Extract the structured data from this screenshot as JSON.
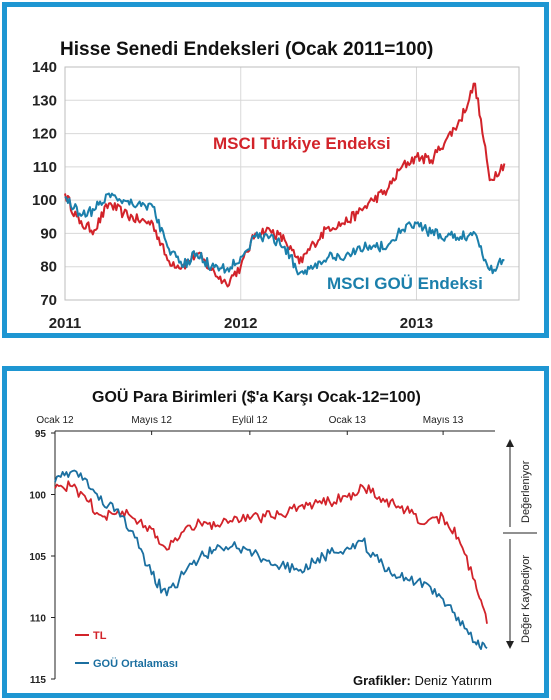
{
  "chart_data": [
    {
      "type": "line",
      "title": "Hisse Senedi Endeksleri (Ocak 2011=100)",
      "xlabel": "",
      "ylabel": "",
      "x_tick_labels": [
        "2011",
        "2012",
        "2013"
      ],
      "y_ticks": [
        70,
        80,
        90,
        100,
        110,
        120,
        130,
        140
      ],
      "ylim": [
        70,
        140
      ],
      "grid": true,
      "series": [
        {
          "name": "MSCI Türkiye Endeksi",
          "color": "#d2232a",
          "x": [
            "2011-01",
            "2011-02",
            "2011-03",
            "2011-04",
            "2011-05",
            "2011-06",
            "2011-07",
            "2011-08",
            "2011-09",
            "2011-10",
            "2011-11",
            "2011-12",
            "2012-01",
            "2012-02",
            "2012-03",
            "2012-04",
            "2012-05",
            "2012-06",
            "2012-07",
            "2012-08",
            "2012-09",
            "2012-10",
            "2012-11",
            "2012-12",
            "2013-01",
            "2013-02",
            "2013-03",
            "2013-04",
            "2013-05",
            "2013-06",
            "2013-07"
          ],
          "values": [
            102,
            93,
            91,
            99,
            96,
            94,
            93,
            82,
            80,
            84,
            79,
            75,
            80,
            90,
            91,
            88,
            81,
            87,
            92,
            93,
            96,
            100,
            103,
            110,
            113,
            112,
            118,
            124,
            135,
            106,
            111
          ]
        },
        {
          "name": "MSCI GOÜ Endeksi",
          "color": "#1b7fab",
          "x": [
            "2011-01",
            "2011-02",
            "2011-03",
            "2011-04",
            "2011-05",
            "2011-06",
            "2011-07",
            "2011-08",
            "2011-09",
            "2011-10",
            "2011-11",
            "2011-12",
            "2012-01",
            "2012-02",
            "2012-03",
            "2012-04",
            "2012-05",
            "2012-06",
            "2012-07",
            "2012-08",
            "2012-09",
            "2012-10",
            "2012-11",
            "2012-12",
            "2013-01",
            "2013-02",
            "2013-03",
            "2013-04",
            "2013-05",
            "2013-06",
            "2013-07"
          ],
          "values": [
            101,
            96,
            97,
            102,
            100,
            99,
            98,
            86,
            80,
            84,
            80,
            79,
            83,
            89,
            89,
            86,
            78,
            80,
            83,
            82,
            86,
            86,
            86,
            91,
            93,
            90,
            89,
            89,
            90,
            79,
            82
          ]
        }
      ]
    },
    {
      "type": "line",
      "title": "GOÜ Para Birimleri ($'a Karşı Ocak-12=100)",
      "xlabel": "",
      "ylabel": "",
      "x_tick_labels": [
        "Ocak 12",
        "Mayıs 12",
        "Eylül 12",
        "Ocak 13",
        "Mayıs 13"
      ],
      "y_ticks": [
        95,
        100,
        105,
        110,
        115
      ],
      "ylim": [
        115,
        95
      ],
      "y_inverted": true,
      "grid": false,
      "legend_position": "bottom-left",
      "series": [
        {
          "name": "TL",
          "color": "#d2232a",
          "x": [
            "2012-01-01",
            "2012-01-20",
            "2012-02-10",
            "2012-03-01",
            "2012-03-20",
            "2012-04-10",
            "2012-05-01",
            "2012-05-20",
            "2012-06-10",
            "2012-07-01",
            "2012-07-20",
            "2012-08-10",
            "2012-09-01",
            "2012-09-20",
            "2012-10-10",
            "2012-11-01",
            "2012-11-20",
            "2012-12-10",
            "2013-01-01",
            "2013-01-20",
            "2013-02-10",
            "2013-03-01",
            "2013-03-20",
            "2013-04-10",
            "2013-05-01",
            "2013-05-20",
            "2013-06-10",
            "2013-06-25"
          ],
          "values": [
            99.5,
            99.3,
            100.5,
            101.8,
            101.3,
            102.0,
            102.8,
            104.5,
            103.0,
            102.3,
            102.6,
            102.2,
            102.0,
            101.8,
            101.6,
            101.0,
            100.8,
            100.6,
            100.2,
            99.3,
            100.2,
            100.8,
            101.5,
            102.3,
            101.8,
            103.5,
            107.0,
            110.5
          ]
        },
        {
          "name": "GOÜ Ortalaması",
          "color": "#1b6fa0",
          "x": [
            "2012-01-01",
            "2012-01-20",
            "2012-02-10",
            "2012-03-01",
            "2012-03-20",
            "2012-04-10",
            "2012-05-01",
            "2012-05-20",
            "2012-06-10",
            "2012-07-01",
            "2012-07-20",
            "2012-08-10",
            "2012-09-01",
            "2012-09-20",
            "2012-10-10",
            "2012-11-01",
            "2012-11-20",
            "2012-12-10",
            "2013-01-01",
            "2013-01-20",
            "2013-02-10",
            "2013-03-01",
            "2013-03-20",
            "2013-04-10",
            "2013-05-01",
            "2013-05-20",
            "2013-06-10",
            "2013-06-25"
          ],
          "values": [
            99.0,
            98.2,
            98.8,
            100.8,
            101.2,
            103.5,
            106.5,
            108.2,
            106.5,
            105.0,
            104.5,
            104.2,
            104.5,
            105.3,
            105.8,
            106.2,
            105.5,
            104.8,
            104.3,
            103.8,
            105.5,
            106.5,
            107.0,
            107.2,
            108.5,
            110.0,
            112.0,
            112.5
          ]
        }
      ]
    }
  ],
  "panel2_side_labels": {
    "up": "Değerleniyor",
    "down": "Değer Kaybediyor"
  },
  "credit": {
    "label": "Grafikler:",
    "value": "Deniz Yatırım"
  },
  "colors": {
    "frame": "#1e96d2"
  }
}
